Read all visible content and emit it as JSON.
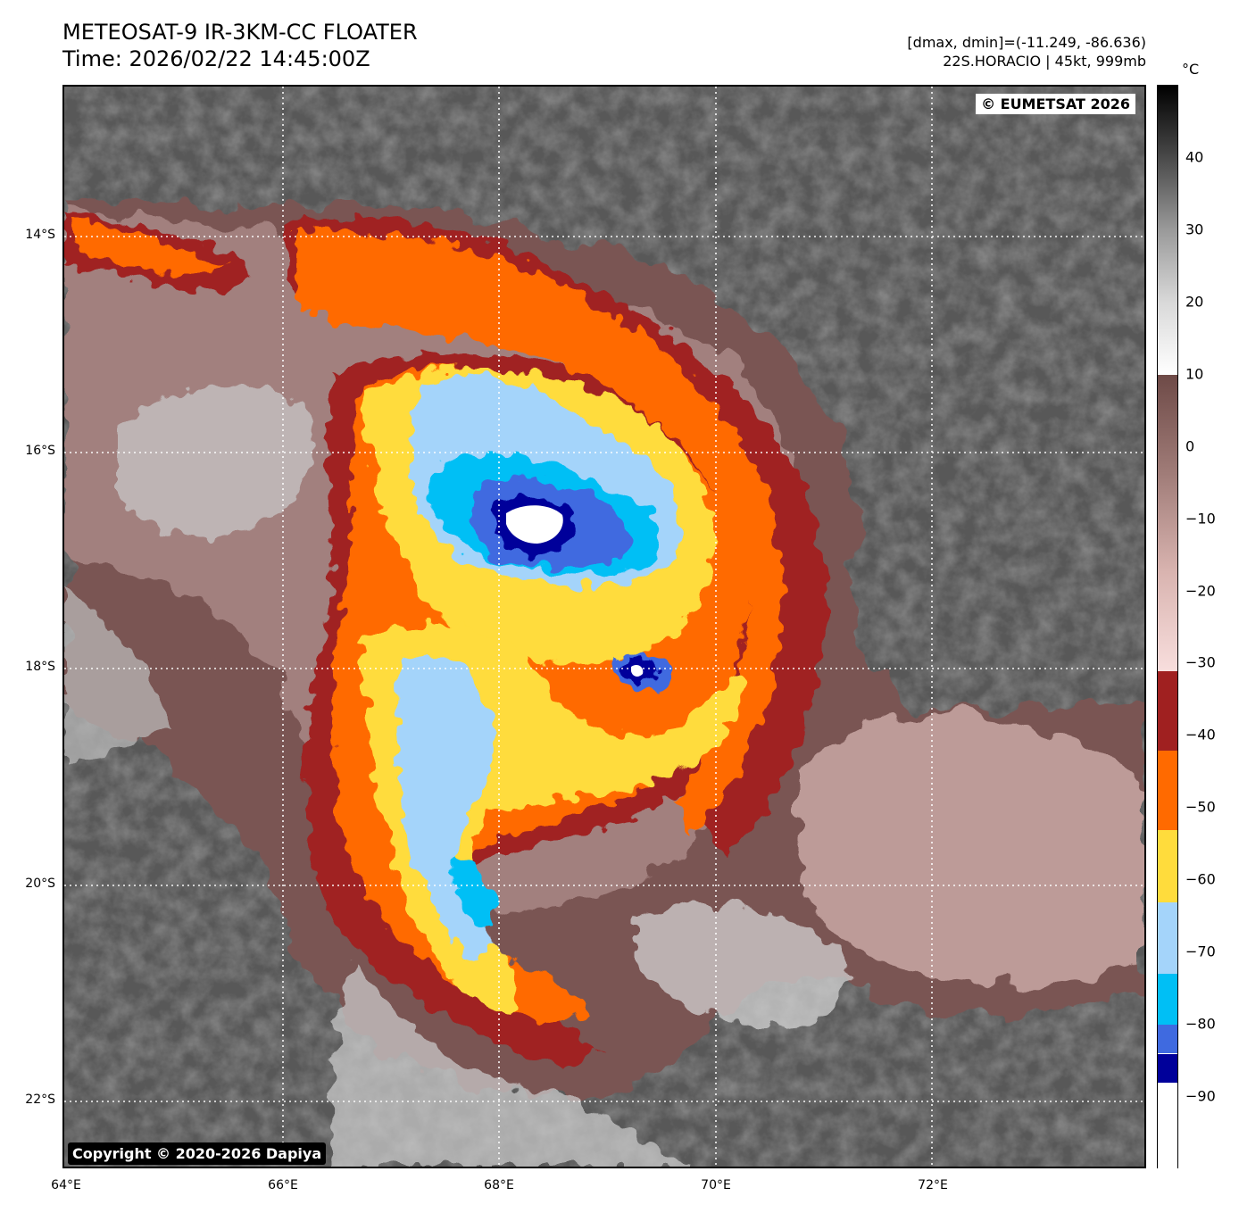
{
  "header": {
    "title_line1": "METEOSAT-9 IR-3KM-CC FLOATER",
    "title_line2": "Time: 2026/02/22 14:45:00Z",
    "info_line1": "[dmax, dmin]=(-11.249, -86.636)",
    "info_line2": "22S.HORACIO | 45kt, 999mb"
  },
  "map": {
    "credit_top": "© EUMETSAT 2026",
    "credit_bottom": "Copyright © 2020-2026 Dapiya",
    "lat_labels": [
      "14°S",
      "16°S",
      "18°S",
      "20°S",
      "22°S"
    ],
    "lon_labels": [
      "64°E",
      "66°E",
      "68°E",
      "70°E",
      "72°E"
    ],
    "extent": {
      "lon_min": 64,
      "lon_max": 74,
      "lat_max": -12.6,
      "lat_min": -22.6
    }
  },
  "colorbar": {
    "unit": "°C",
    "ticks": [
      "40",
      "30",
      "20",
      "10",
      "0",
      "−10",
      "−20",
      "−30",
      "−40",
      "−50",
      "−60",
      "−70",
      "−80",
      "−90"
    ],
    "range": [
      -100,
      50
    ],
    "bands": [
      {
        "from": 10,
        "to": 50,
        "colors": [
          "#ffffff",
          "#d9d9d9",
          "#9a9a9a",
          "#4a4a4a",
          "#000000"
        ]
      },
      {
        "from": -31,
        "to": 10,
        "colors": [
          "#f8dedd",
          "#d9b4b0",
          "#a07c78",
          "#6e4a47"
        ]
      },
      {
        "from": -42,
        "to": -31,
        "colors": [
          "#a02020"
        ]
      },
      {
        "from": -53,
        "to": -42,
        "colors": [
          "#ff6a00"
        ]
      },
      {
        "from": -63,
        "to": -53,
        "colors": [
          "#ffdc3c"
        ]
      },
      {
        "from": -73,
        "to": -63,
        "colors": [
          "#a4d4fa"
        ]
      },
      {
        "from": -80,
        "to": -73,
        "colors": [
          "#00bff5"
        ]
      },
      {
        "from": -84,
        "to": -80,
        "colors": [
          "#3f6ae0"
        ]
      },
      {
        "from": -88,
        "to": -84,
        "colors": [
          "#00009a"
        ]
      },
      {
        "from": -100,
        "to": -88,
        "colors": [
          "#ffffff"
        ]
      }
    ]
  },
  "storm": {
    "name": "22S.HORACIO",
    "intensity_kt": 45,
    "pressure_mb": 999
  }
}
